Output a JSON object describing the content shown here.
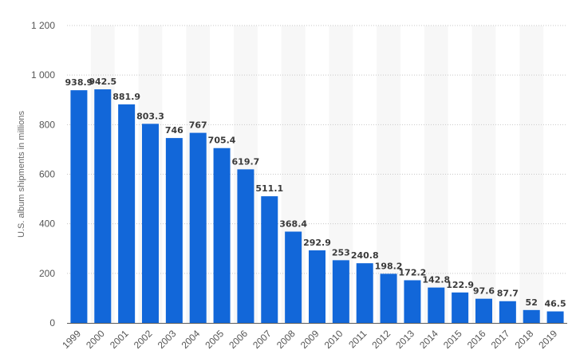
{
  "chart_data": {
    "type": "bar",
    "title": "",
    "xlabel": "",
    "ylabel": "U.S. album shipments in millions",
    "ylim": [
      0,
      1200
    ],
    "yticks": [
      0,
      200,
      400,
      600,
      800,
      1000,
      1200
    ],
    "ytick_labels": [
      "0",
      "200",
      "400",
      "600",
      "800",
      "1 000",
      "1 200"
    ],
    "grid": true,
    "categories": [
      "1999",
      "2000",
      "2001",
      "2002",
      "2003",
      "2004",
      "2005",
      "2006",
      "2007",
      "2008",
      "2009",
      "2010",
      "2011",
      "2012",
      "2013",
      "2014",
      "2015",
      "2016",
      "2017",
      "2018",
      "2019"
    ],
    "values": [
      938.9,
      942.5,
      881.9,
      803.3,
      746,
      767,
      705.4,
      619.7,
      511.1,
      368.4,
      292.9,
      253,
      240.8,
      198.2,
      172.2,
      142.8,
      122.9,
      97.6,
      87.7,
      52,
      46.5
    ],
    "data_labels": [
      "938.9",
      "942.5",
      "881.9",
      "803.3",
      "746",
      "767",
      "705.4",
      "619.7",
      "511.1",
      "368.4",
      "292.9",
      "253",
      "240.8",
      "198.2",
      "172.2",
      "142.8",
      "122.9",
      "97.6",
      "87.7",
      "52",
      "46.5"
    ],
    "colors": {
      "bar": "#1267d9",
      "band": "#f7f7f7"
    }
  }
}
